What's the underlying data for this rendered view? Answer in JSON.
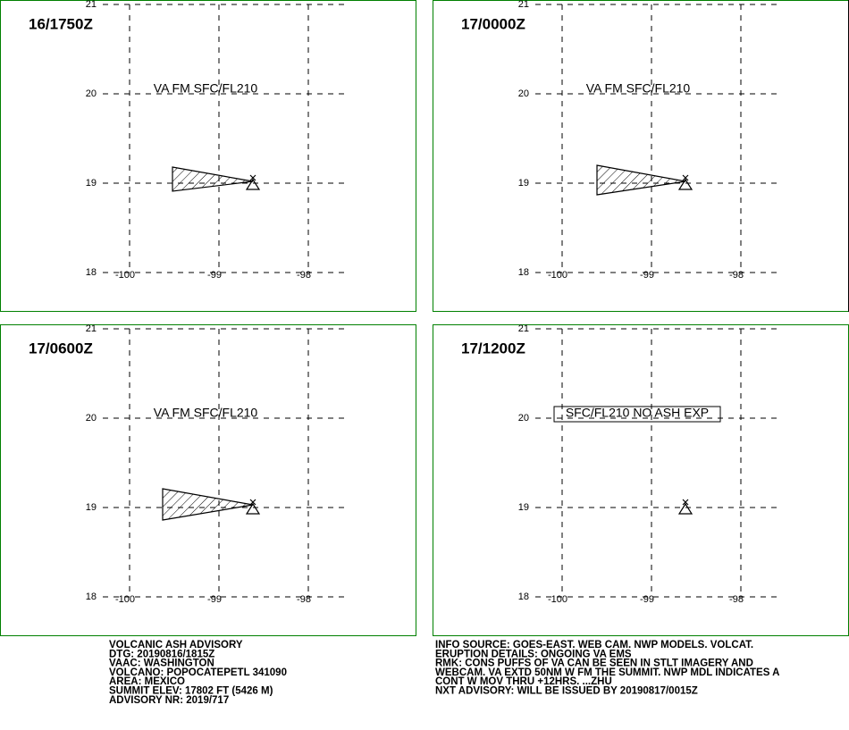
{
  "panels": [
    {
      "time": "16/1750Z",
      "label": "VA FM SFC/FL210",
      "polygon": [
        [
          -99.52,
          19.18
        ],
        [
          -98.62,
          19.02
        ],
        [
          -99.52,
          18.91
        ]
      ],
      "volcano": [
        -98.62,
        19.0
      ]
    },
    {
      "time": "17/0000Z",
      "label": "VA FM SFC/FL210",
      "polygon": [
        [
          -99.61,
          19.2
        ],
        [
          -98.62,
          19.02
        ],
        [
          -99.61,
          18.87
        ]
      ],
      "volcano": [
        -98.62,
        19.0
      ]
    },
    {
      "time": "17/0600Z",
      "label": "VA FM SFC/FL210",
      "polygon": [
        [
          -99.63,
          19.21
        ],
        [
          -98.62,
          19.03
        ],
        [
          -99.63,
          18.86
        ]
      ],
      "volcano": [
        -98.62,
        19.0
      ]
    },
    {
      "time": "17/1200Z",
      "label": "SFC/FL210 NO ASH EXP",
      "boxed": true,
      "volcano": [
        -98.62,
        19.0
      ]
    }
  ],
  "lat_ticks": [
    18,
    19,
    20,
    21
  ],
  "lon_ticks": [
    -100,
    -99,
    -98
  ],
  "advisory_left": [
    "VOLCANIC ASH ADVISORY",
    "DTG: 20190816/1815Z",
    "VAAC: WASHINGTON",
    "VOLCANO: POPOCATEPETL 341090",
    "AREA: MEXICO",
    "SUMMIT ELEV: 17802 FT (5426 M)",
    "ADVISORY NR: 2019/717"
  ],
  "advisory_right": [
    "INFO SOURCE: GOES-EAST. WEB CAM. NWP MODELS. VOLCAT.",
    "ERUPTION DETAILS: ONGOING VA EMS",
    "RMK: CONS PUFFS OF VA CAN BE SEEN IN STLT IMAGERY AND",
    "WEBCAM. VA EXTD 50NM W FM THE SUMMIT. NWP MDL INDICATES A",
    "CONT W MOV THRU +12HRS. ...ZHU",
    "NXT ADVISORY: WILL BE ISSUED BY 20190817/0015Z"
  ]
}
